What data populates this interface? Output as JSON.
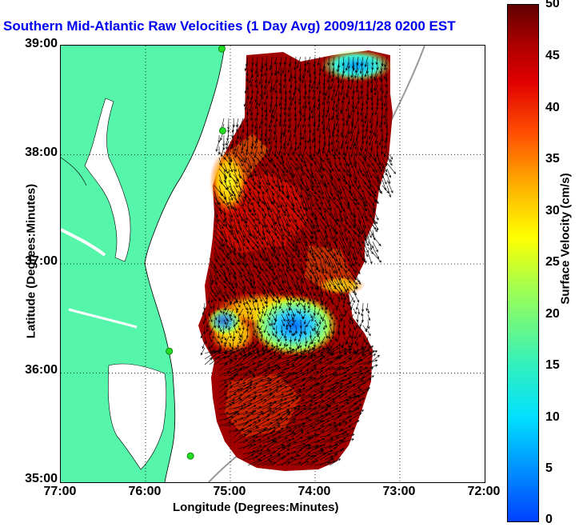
{
  "title": "Southern Mid-Atlantic Raw Velocities (1 Day Avg) 2009/11/28 0200 EST",
  "x_axis": {
    "title": "Longitude (Degrees:Minutes)",
    "ticks": [
      "77:00",
      "76:00",
      "75:00",
      "74:00",
      "73:00",
      "72:00"
    ]
  },
  "y_axis": {
    "title": "Latitude (Degrees:Minutes)",
    "ticks": [
      "39:00",
      "38:00",
      "37:00",
      "36:00",
      "35:00"
    ]
  },
  "colorbar": {
    "title": "Surface Velocity (cm/s)",
    "ticks": [
      "50",
      "45",
      "40",
      "35",
      "30",
      "25",
      "20",
      "15",
      "10",
      "5",
      "0"
    ],
    "range": [
      0,
      50
    ]
  },
  "map": {
    "extent_lon": [
      -77,
      -72
    ],
    "extent_lat": [
      35,
      39
    ],
    "land_color": "#55f5aa",
    "ocean_color": "#ffffff",
    "grid": true,
    "sites": [
      {
        "lon": -75.1,
        "lat": 38.97
      },
      {
        "lon": -75.09,
        "lat": 38.22
      },
      {
        "lon": -75.72,
        "lat": 36.2
      },
      {
        "lon": -75.47,
        "lat": 35.24
      }
    ]
  }
}
